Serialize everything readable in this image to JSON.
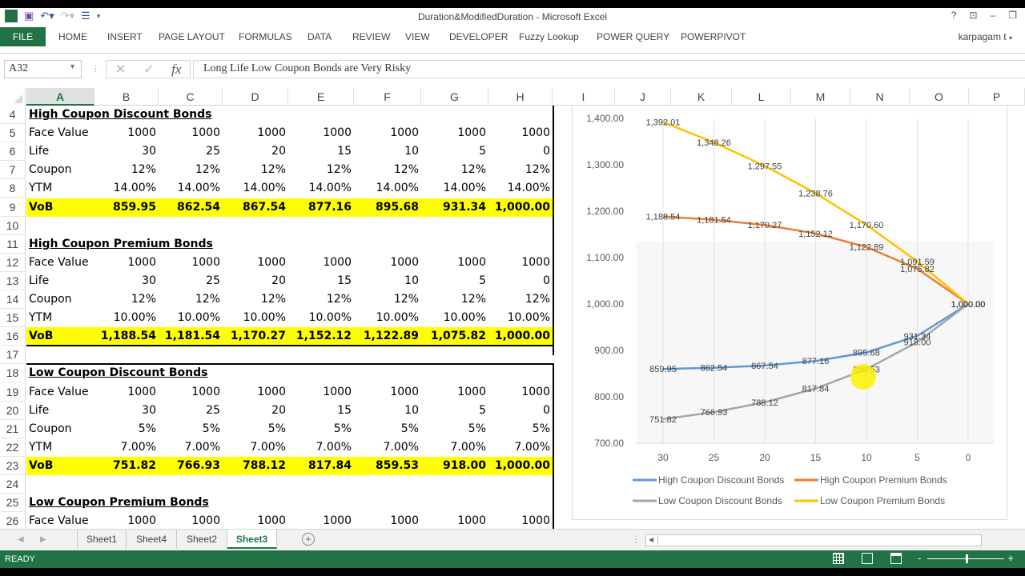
{
  "window": {
    "title": "Duration&ModifiedDuration - Microsoft Excel",
    "controls": [
      "?",
      "ribbon-display",
      "minimize",
      "restore"
    ]
  },
  "qat": {
    "save": "save-icon",
    "undo": "undo-icon",
    "redo": "redo-icon",
    "form": "form-icon"
  },
  "ribbon": {
    "tabs": [
      "FILE",
      "HOME",
      "INSERT",
      "PAGE LAYOUT",
      "FORMULAS",
      "DATA",
      "REVIEW",
      "VIEW",
      "DEVELOPER",
      "Fuzzy Lookup",
      "POWER QUERY",
      "POWERPIVOT"
    ],
    "user": "karpagam t"
  },
  "formula_bar": {
    "name_box": "A32",
    "cancel": "✕",
    "enter": "✓",
    "fx": "fx",
    "content": "Long Life Low Coupon Bonds are Very Risky"
  },
  "columns": [
    "A",
    "B",
    "C",
    "D",
    "E",
    "F",
    "G",
    "H",
    "I",
    "J",
    "K",
    "L",
    "M",
    "N",
    "O",
    "P"
  ],
  "selected_column": "A",
  "rows": [
    {
      "n": "4",
      "cells": [
        "High Coupon Discount Bonds"
      ],
      "type": "head"
    },
    {
      "n": "5",
      "cells": [
        "Face Value",
        "1000",
        "1000",
        "1000",
        "1000",
        "1000",
        "1000",
        "1000"
      ]
    },
    {
      "n": "6",
      "cells": [
        "Life",
        "30",
        "25",
        "20",
        "15",
        "10",
        "5",
        "0"
      ]
    },
    {
      "n": "7",
      "cells": [
        "Coupon",
        "12%",
        "12%",
        "12%",
        "12%",
        "12%",
        "12%",
        "12%"
      ]
    },
    {
      "n": "8",
      "cells": [
        "YTM",
        "14.00%",
        "14.00%",
        "14.00%",
        "14.00%",
        "14.00%",
        "14.00%",
        "14.00%"
      ]
    },
    {
      "n": "9",
      "cells": [
        "VoB",
        "859.95",
        "862.54",
        "867.54",
        "877.16",
        "895.68",
        "931.34",
        "1,000.00"
      ],
      "type": "vob"
    },
    {
      "n": "10",
      "cells": []
    },
    {
      "n": "11",
      "cells": [
        "High Coupon Premium Bonds"
      ],
      "type": "head"
    },
    {
      "n": "12",
      "cells": [
        "Face Value",
        "1000",
        "1000",
        "1000",
        "1000",
        "1000",
        "1000",
        "1000"
      ]
    },
    {
      "n": "13",
      "cells": [
        "Life",
        "30",
        "25",
        "20",
        "15",
        "10",
        "5",
        "0"
      ]
    },
    {
      "n": "14",
      "cells": [
        "Coupon",
        "12%",
        "12%",
        "12%",
        "12%",
        "12%",
        "12%",
        "12%"
      ]
    },
    {
      "n": "15",
      "cells": [
        "YTM",
        "10.00%",
        "10.00%",
        "10.00%",
        "10.00%",
        "10.00%",
        "10.00%",
        "10.00%"
      ]
    },
    {
      "n": "16",
      "cells": [
        "VoB",
        "1,188.54",
        "1,181.54",
        "1,170.27",
        "1,152.12",
        "1,122.89",
        "1,075.82",
        "1,000.00"
      ],
      "type": "vob"
    },
    {
      "n": "17",
      "cells": []
    },
    {
      "n": "18",
      "cells": [
        "Low Coupon Discount Bonds"
      ],
      "type": "head"
    },
    {
      "n": "19",
      "cells": [
        "Face Value",
        "1000",
        "1000",
        "1000",
        "1000",
        "1000",
        "1000",
        "1000"
      ]
    },
    {
      "n": "20",
      "cells": [
        "Life",
        "30",
        "25",
        "20",
        "15",
        "10",
        "5",
        "0"
      ]
    },
    {
      "n": "21",
      "cells": [
        "Coupon",
        "5%",
        "5%",
        "5%",
        "5%",
        "5%",
        "5%",
        "5%"
      ]
    },
    {
      "n": "22",
      "cells": [
        "YTM",
        "7.00%",
        "7.00%",
        "7.00%",
        "7.00%",
        "7.00%",
        "7.00%",
        "7.00%"
      ]
    },
    {
      "n": "23",
      "cells": [
        "VoB",
        "751.82",
        "766.93",
        "788.12",
        "817.84",
        "859.53",
        "918.00",
        "1,000.00"
      ],
      "type": "vob"
    },
    {
      "n": "24",
      "cells": []
    },
    {
      "n": "25",
      "cells": [
        "Low Coupon Premium Bonds"
      ],
      "type": "head"
    },
    {
      "n": "26",
      "cells": [
        "Face Value",
        "1000",
        "1000",
        "1000",
        "1000",
        "1000",
        "1000",
        "1000"
      ]
    }
  ],
  "chart_data": {
    "type": "line",
    "title": "",
    "xlabel": "",
    "ylabel": "",
    "categories": [
      "30",
      "25",
      "20",
      "15",
      "10",
      "5",
      "0"
    ],
    "ylim": [
      700,
      1400
    ],
    "yticks": [
      "700.00",
      "800.00",
      "900.00",
      "1,000.00",
      "1,100.00",
      "1,200.00",
      "1,300.00",
      "1,400.00"
    ],
    "grid": "vertical",
    "legend_position": "bottom",
    "data_labels": true,
    "series": [
      {
        "name": "High Coupon Discount Bonds",
        "color": "#5b9bd5",
        "values": [
          859.95,
          862.54,
          867.54,
          877.16,
          895.68,
          931.34,
          1000.0
        ],
        "labels": [
          "859.95",
          "862.54",
          "867.54",
          "877.16",
          "895.68",
          "931.34",
          "1,000.00"
        ]
      },
      {
        "name": "High Coupon Premium Bonds",
        "color": "#ed7d31",
        "values": [
          1188.54,
          1181.54,
          1170.27,
          1152.12,
          1122.89,
          1075.82,
          1000.0
        ],
        "labels": [
          "1,188.54",
          "1,181.54",
          "1,170.27",
          "1,152.12",
          "1,122.89",
          "1,075.82",
          "1,000.00"
        ]
      },
      {
        "name": "Low Coupon Discount Bonds",
        "color": "#a5a5a5",
        "values": [
          751.82,
          766.93,
          788.12,
          817.84,
          859.53,
          918.0,
          1000.0
        ],
        "labels": [
          "751.82",
          "766.93",
          "788.12",
          "817.84",
          "859.53",
          "918.00",
          "1,000.00"
        ]
      },
      {
        "name": "Low Coupon Premium Bonds",
        "color": "#ffc000",
        "values": [
          1392.01,
          1348.26,
          1297.55,
          1238.76,
          1170.6,
          1091.59,
          1000.0
        ],
        "labels": [
          "1,392.01",
          "1,348.26",
          "1,297.55",
          "1,238.76",
          "1,170.60",
          "1,091.59",
          "1,000.00"
        ]
      }
    ]
  },
  "sheets": {
    "tabs": [
      "Sheet1",
      "Sheet4",
      "Sheet2",
      "Sheet3"
    ],
    "active": "Sheet3",
    "add": "+"
  },
  "status": {
    "text": "READY",
    "zoom_minus": "-",
    "zoom_plus": "+"
  },
  "colors": {
    "excel_green": "#217346",
    "vob_highlight": "#ffff00"
  }
}
